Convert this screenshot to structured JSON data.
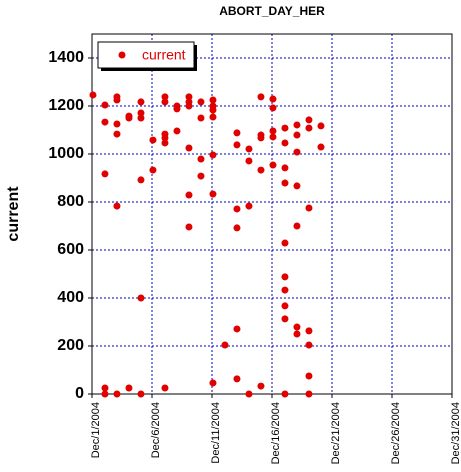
{
  "chart_data": {
    "type": "scatter",
    "title": "ABORT_DAY_HER",
    "y_label": "current",
    "series": [
      {
        "name": "current",
        "color": "#e00000",
        "x": [
          1.08,
          2.08,
          2.08,
          2.08,
          2.08,
          2.08,
          3.08,
          3.08,
          3.08,
          3.08,
          3.08,
          3.08,
          4.08,
          4.08,
          4.08,
          5.08,
          5.08,
          5.08,
          5.08,
          5.08,
          5.08,
          6.08,
          6.08,
          7.08,
          7.08,
          7.08,
          7.08,
          7.08,
          7.08,
          8.08,
          8.08,
          8.08,
          9.08,
          9.08,
          9.08,
          9.08,
          9.08,
          9.08,
          10.08,
          10.08,
          10.08,
          10.08,
          11.08,
          11.08,
          11.08,
          11.08,
          11.08,
          11.08,
          11.08,
          12.08,
          13.08,
          13.08,
          13.08,
          13.08,
          13.08,
          13.08,
          14.08,
          14.08,
          14.08,
          14.08,
          15.08,
          15.08,
          15.08,
          15.08,
          15.08,
          16.08,
          16.08,
          16.08,
          16.08,
          16.08,
          17.08,
          17.08,
          17.08,
          17.08,
          17.08,
          17.08,
          17.08,
          17.08,
          17.08,
          17.08,
          18.08,
          18.08,
          18.08,
          18.08,
          18.08,
          18.08,
          18.08,
          19.08,
          19.08,
          19.08,
          19.08,
          19.08,
          19.08,
          19.08,
          20.08,
          20.08
        ],
        "values": [
          1246,
          1204,
          1133,
          917,
          25,
          0,
          1238,
          1225,
          1125,
          1083,
          783,
          0,
          1158,
          1150,
          25,
          1217,
          1171,
          1150,
          892,
          400,
          0,
          1058,
          933,
          1238,
          1217,
          1083,
          1067,
          1046,
          25,
          1200,
          1188,
          1096,
          1238,
          1217,
          1200,
          1025,
          829,
          696,
          1217,
          1150,
          979,
          908,
          1225,
          1200,
          1183,
          1154,
          996,
          833,
          46,
          204,
          1088,
          1038,
          771,
          692,
          271,
          63,
          1021,
          971,
          783,
          0,
          1238,
          1079,
          1067,
          933,
          33,
          1229,
          1192,
          1096,
          1071,
          954,
          1108,
          1046,
          942,
          879,
          629,
          488,
          433,
          367,
          313,
          0,
          1121,
          1079,
          1008,
          867,
          700,
          279,
          250,
          1142,
          1108,
          775,
          263,
          204,
          75,
          0,
          1117,
          1029
        ]
      }
    ],
    "xlim": [
      1,
      31
    ],
    "xticks": [
      {
        "value": 1,
        "label": "Dec/1/2004"
      },
      {
        "value": 6,
        "label": "Dec/6/2004"
      },
      {
        "value": 11,
        "label": "Dec/11/2004"
      },
      {
        "value": 16,
        "label": "Dec/16/2004"
      },
      {
        "value": 21,
        "label": "Dec/21/2004"
      },
      {
        "value": 26,
        "label": "Dec/26/2004"
      },
      {
        "value": 31,
        "label": "Dec/31/2004"
      }
    ],
    "ylim": [
      0,
      1500
    ],
    "yticks": [
      0,
      200,
      400,
      600,
      800,
      1000,
      1200,
      1400
    ],
    "grid": true,
    "legend": "upper left"
  }
}
